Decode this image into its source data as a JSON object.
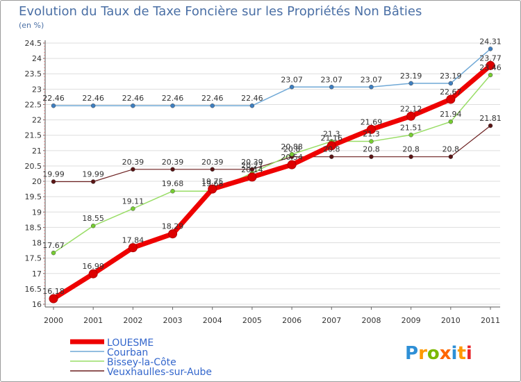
{
  "chart_data": {
    "type": "line",
    "title": "Evolution du Taux de Taxe Foncière sur les Propriétés Non Bâties",
    "subtitle": "(en %)",
    "xlabel": "",
    "ylabel": "",
    "x": [
      "2000",
      "2001",
      "2002",
      "2003",
      "2004",
      "2005",
      "2006",
      "2007",
      "2008",
      "2009",
      "2010",
      "2011"
    ],
    "yticks": [
      "16",
      "16.5",
      "17",
      "17.5",
      "18",
      "18.5",
      "19",
      "19.5",
      "20",
      "20.5",
      "21",
      "21.5",
      "22",
      "22.5",
      "23",
      "23.5",
      "24",
      "24.5"
    ],
    "ylim": [
      16,
      24.5
    ],
    "grid": "horizontal",
    "legend": "bottom-left",
    "series": [
      {
        "name": "Veuxhaulles-sur-Aube",
        "color": "#6b1f1f",
        "markerColor": "#5a1414",
        "width": 1.2,
        "values": [
          19.99,
          19.99,
          20.39,
          20.39,
          20.39,
          20.39,
          20.8,
          20.8,
          20.8,
          20.8,
          20.8,
          21.81
        ],
        "labels": [
          "19.99",
          "19.99",
          "20.39",
          "20.39",
          "20.39",
          "20.39",
          "20.8",
          "20.8",
          "20.8",
          "20.8",
          "20.8",
          "21.81"
        ]
      },
      {
        "name": "Bissey-la-Côte",
        "color": "#99dd66",
        "markerColor": "#77cc33",
        "width": 1.5,
        "values": [
          17.67,
          18.55,
          19.11,
          19.68,
          19.68,
          20.27,
          20.88,
          21.3,
          21.3,
          21.51,
          21.94,
          23.46
        ],
        "labels": [
          "17.67",
          "18.55",
          "19.11",
          "19.68",
          "19.68",
          "20.27",
          "20.88",
          "21.3",
          "21.3",
          "21.51",
          "21.94",
          "23.46"
        ]
      },
      {
        "name": "Courban",
        "color": "#6fa8d6",
        "markerColor": "#3f7fc0",
        "width": 1.5,
        "values": [
          22.46,
          22.46,
          22.46,
          22.46,
          22.46,
          22.46,
          23.07,
          23.07,
          23.07,
          23.19,
          23.19,
          24.31
        ],
        "labels": [
          "22.46",
          "22.46",
          "22.46",
          "22.46",
          "22.46",
          "22.46",
          "23.07",
          "23.07",
          "23.07",
          "23.19",
          "23.19",
          "24.31"
        ]
      },
      {
        "name": "LOUESME",
        "color": "#ee0000",
        "markerColor": "#dd0000",
        "width": 7,
        "values": [
          16.18,
          16.99,
          17.84,
          18.29,
          19.75,
          20.14,
          20.54,
          21.16,
          21.69,
          22.12,
          22.67,
          23.77
        ],
        "labels": [
          "16.18",
          "16.99",
          "17.84",
          "18.29",
          "19.75",
          "20.14",
          "20.54",
          "21.16",
          "21.69",
          "22.12",
          "22.67",
          "23.77"
        ]
      }
    ],
    "legendOrder": [
      "LOUESME",
      "Courban",
      "Bissey-la-Côte",
      "Veuxhaulles-sur-Aube"
    ]
  },
  "logo": {
    "letters": [
      "P",
      "r",
      "o",
      "x",
      "i",
      "t",
      "i"
    ],
    "colors": [
      "#2e8fd6",
      "#ff9900",
      "#7ab800",
      "#ff6600",
      "#2e8fd6",
      "#ff9900",
      "#e8262a"
    ]
  }
}
